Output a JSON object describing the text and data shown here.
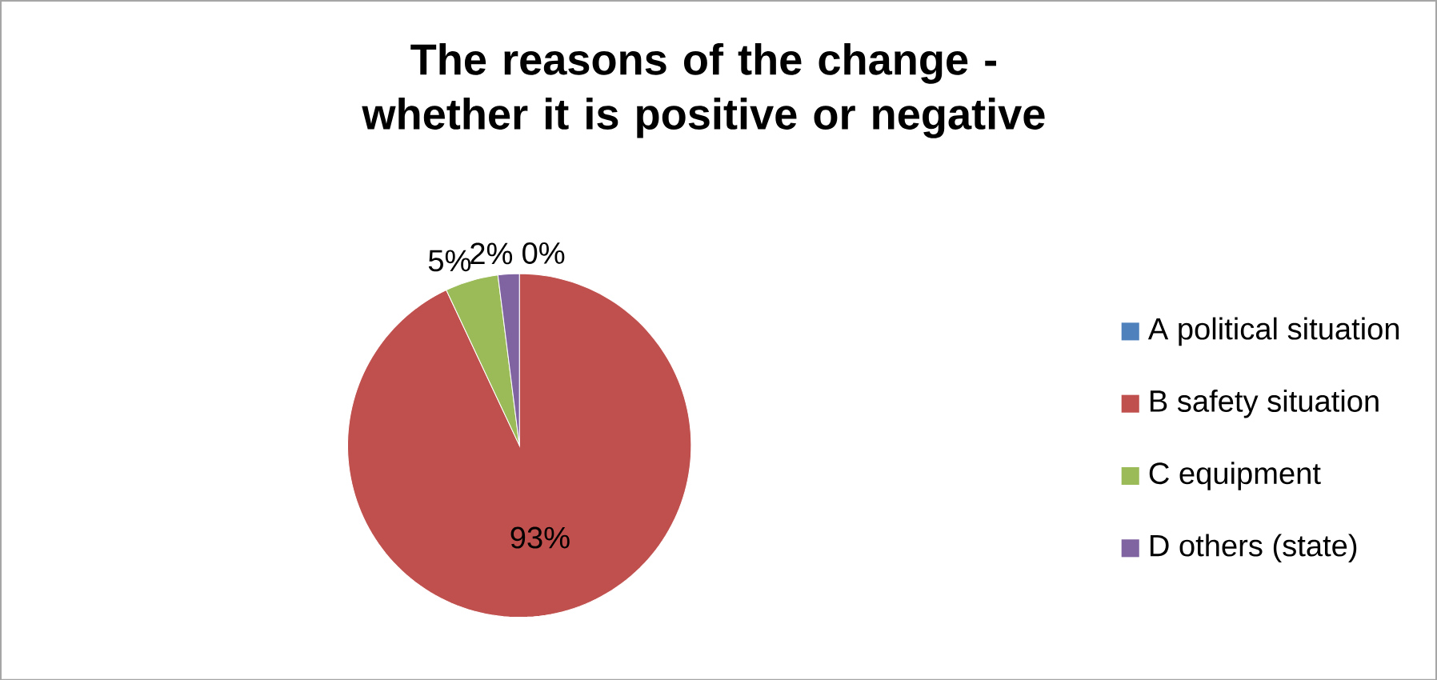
{
  "chart_data": {
    "type": "pie",
    "title": "The reasons of the change - whether it is positive or negative",
    "categories": [
      "A political situation",
      "B safety situation",
      "C equipment",
      "D others (state)"
    ],
    "values": [
      0,
      93,
      5,
      2
    ],
    "colors": [
      "#4f81bd",
      "#c0504d",
      "#9bbb59",
      "#8064a2"
    ],
    "value_labels": [
      "0%",
      "93%",
      "5%",
      "2%"
    ],
    "legend": "right"
  }
}
